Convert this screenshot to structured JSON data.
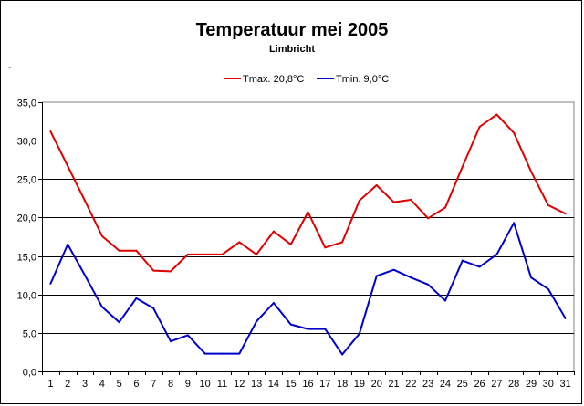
{
  "chart_data": {
    "type": "line",
    "title": "Temperatuur mei 2005",
    "subtitle": "Limbricht",
    "stray_mark": "-",
    "xlabel": "",
    "ylabel": "",
    "ylim": [
      0,
      35
    ],
    "ytick_labels": [
      "0,0",
      "5,0",
      "10,0",
      "15,0",
      "20,0",
      "25,0",
      "30,0",
      "35,0"
    ],
    "ytick_values": [
      0,
      5,
      10,
      15,
      20,
      25,
      30,
      35
    ],
    "categories": [
      "1",
      "2",
      "3",
      "4",
      "5",
      "6",
      "7",
      "8",
      "9",
      "10",
      "11",
      "12",
      "13",
      "14",
      "15",
      "16",
      "17",
      "18",
      "19",
      "20",
      "21",
      "22",
      "23",
      "24",
      "25",
      "26",
      "27",
      "28",
      "29",
      "30",
      "31"
    ],
    "grid": true,
    "legend_position": "top-center",
    "series": [
      {
        "name": "Tmax. 20,8°C",
        "color": "#e00000",
        "values": [
          31.2,
          26.7,
          22.2,
          17.6,
          15.7,
          15.7,
          13.1,
          13.0,
          15.2,
          15.2,
          15.2,
          16.8,
          15.2,
          18.2,
          16.5,
          20.7,
          16.1,
          16.8,
          22.2,
          24.2,
          22.0,
          22.3,
          19.9,
          21.3,
          26.6,
          31.8,
          33.4,
          31.0,
          26.0,
          21.6,
          20.5
        ]
      },
      {
        "name": "Tmin. 9,0°C",
        "color": "#0000cc",
        "values": [
          11.4,
          16.5,
          12.5,
          8.4,
          6.4,
          9.5,
          8.2,
          3.9,
          4.7,
          2.3,
          2.3,
          2.3,
          6.5,
          8.9,
          6.1,
          5.5,
          5.5,
          2.2,
          4.9,
          12.4,
          13.2,
          12.2,
          11.3,
          9.2,
          14.4,
          13.6,
          15.2,
          19.3,
          12.2,
          10.7,
          6.9
        ]
      }
    ]
  }
}
